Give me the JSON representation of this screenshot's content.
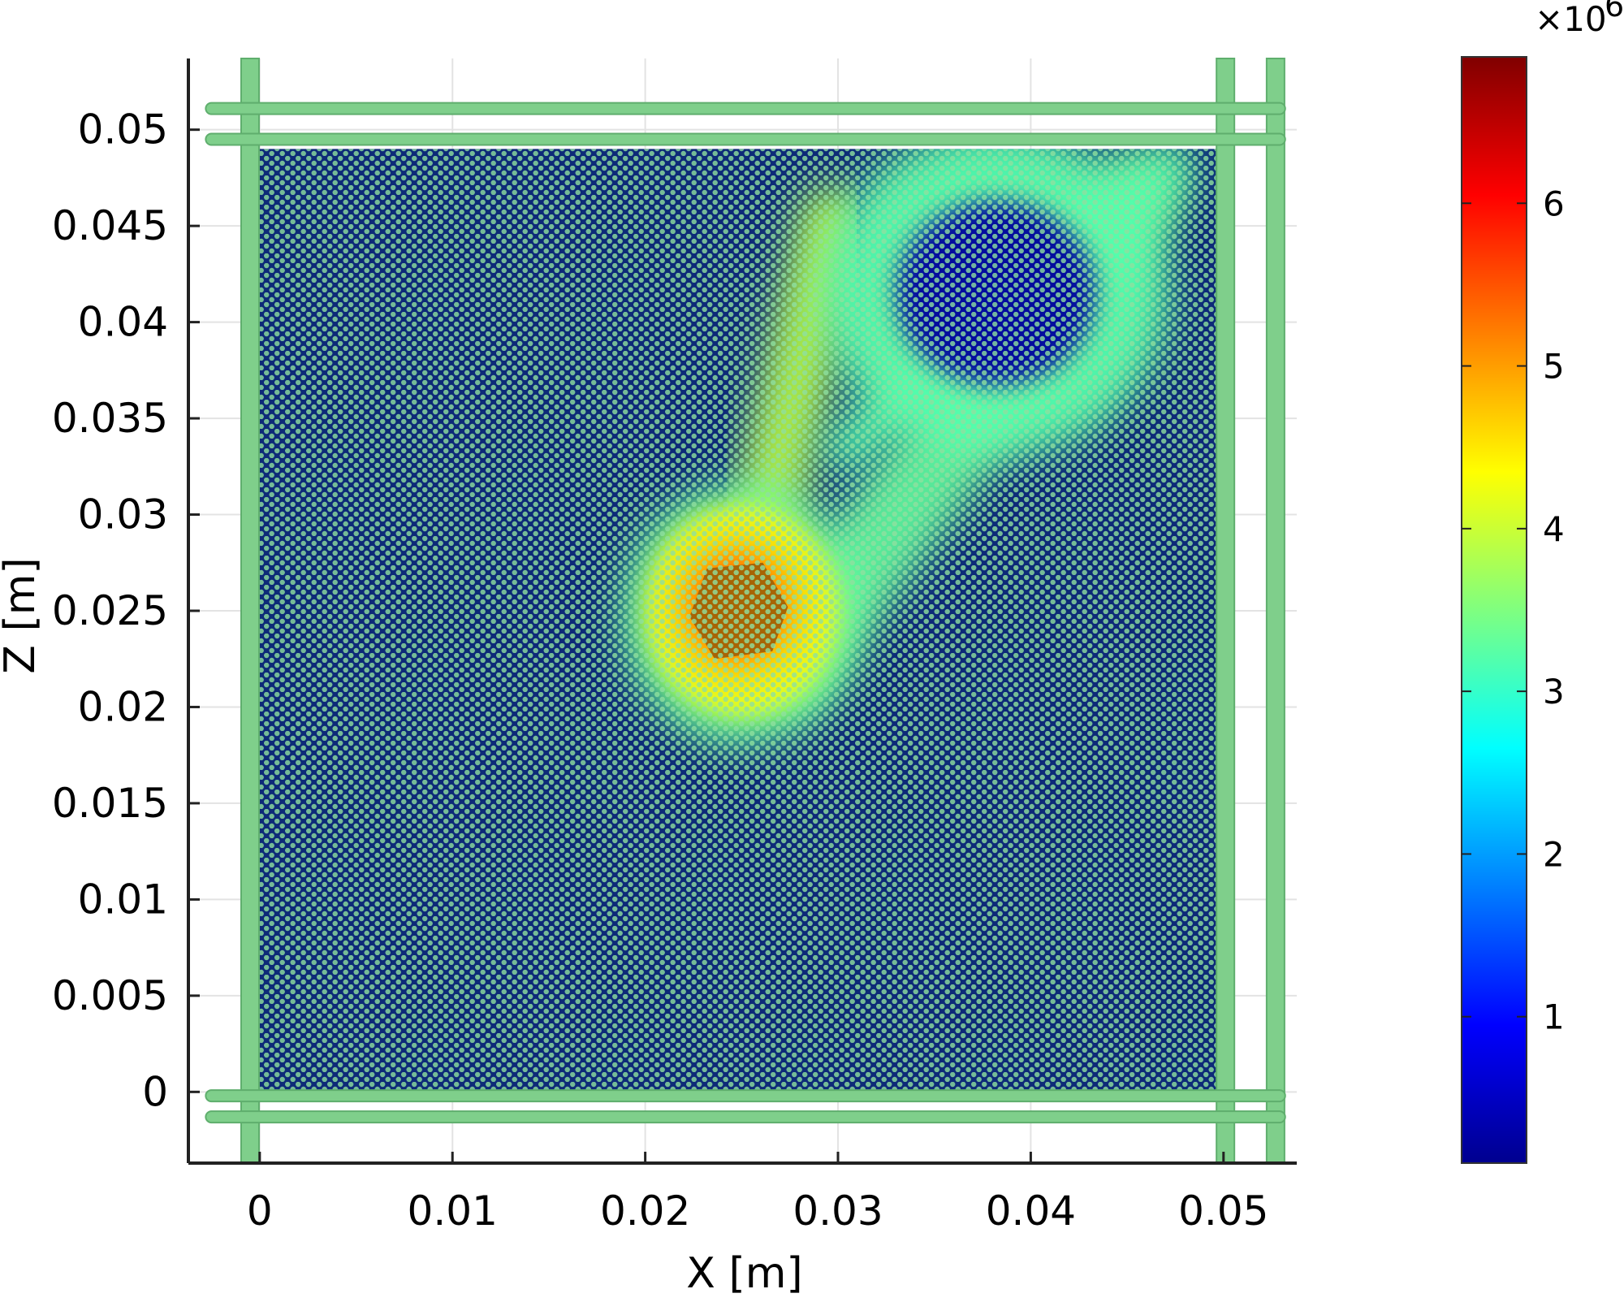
{
  "chart_data": {
    "type": "heatmap",
    "title": "",
    "xlabel": "X [m]",
    "ylabel": "Z [m]",
    "xlim": [
      -0.0037,
      0.0538
    ],
    "ylim": [
      -0.0037,
      0.0537
    ],
    "x_ticks": [
      0,
      0.01,
      0.02,
      0.03,
      0.04,
      0.05
    ],
    "x_tick_labels": [
      "0",
      "0.01",
      "0.02",
      "0.03",
      "0.04",
      "0.05"
    ],
    "y_ticks": [
      0,
      0.005,
      0.01,
      0.015,
      0.02,
      0.025,
      0.03,
      0.035,
      0.04,
      0.045,
      0.05
    ],
    "y_tick_labels": [
      "0",
      "0.005",
      "0.01",
      "0.015",
      "0.02",
      "0.025",
      "0.03",
      "0.035",
      "0.04",
      "0.045",
      "0.05"
    ],
    "grid": true,
    "colorbar": {
      "colormap": "jet",
      "range": [
        100000,
        6900000
      ],
      "ticks": [
        1000000,
        2000000,
        3000000,
        4000000,
        5000000,
        6000000
      ],
      "tick_labels": [
        "1",
        "2",
        "3",
        "4",
        "5",
        "6"
      ],
      "multiplier_base": "×10",
      "multiplier_exponent": "6",
      "placement": "right"
    },
    "domain": {
      "specimen_x": [
        0,
        0.05
      ],
      "specimen_z": [
        0,
        0.049
      ]
    },
    "regions": [
      {
        "shape": "ellipse",
        "cx": 0.025,
        "cz": 0.0248,
        "rx": 0.0062,
        "rz": 0.0068,
        "value": 3300000
      },
      {
        "shape": "ellipse",
        "cx": 0.025,
        "cz": 0.025,
        "rx": 0.005,
        "rz": 0.0055,
        "value": 4300000
      },
      {
        "shape": "ellipse",
        "cx": 0.0248,
        "cz": 0.0252,
        "rx": 0.0036,
        "rz": 0.0038,
        "value": 4800000
      },
      {
        "shape": "ellipse",
        "cx": 0.0248,
        "cz": 0.0252,
        "rx": 0.0024,
        "rz": 0.0026,
        "value": 5300000
      },
      {
        "shape": "ellipse",
        "cx": 0.0382,
        "cz": 0.0415,
        "rx": 0.009,
        "rz": 0.0085,
        "value": 3200000
      },
      {
        "shape": "ellipse",
        "cx": 0.0382,
        "cz": 0.0415,
        "rx": 0.0052,
        "rz": 0.0048,
        "value": 300000
      }
    ],
    "bands": [
      {
        "from": [
          0.0255,
          0.0265
        ],
        "to": [
          0.0297,
          0.0452
        ],
        "width": 0.0036,
        "value": 3900000
      },
      {
        "from": [
          0.0275,
          0.0225
        ],
        "to": [
          0.0455,
          0.0465
        ],
        "width": 0.0048,
        "value": 3300000
      },
      {
        "from": [
          0.031,
          0.0478
        ],
        "to": [
          0.048,
          0.0478
        ],
        "width": 0.0026,
        "value": 3600000
      },
      {
        "from": [
          0.0305,
          0.0335
        ],
        "to": [
          0.0472,
          0.048
        ],
        "width": 0.0024,
        "value": 3200000
      }
    ]
  }
}
